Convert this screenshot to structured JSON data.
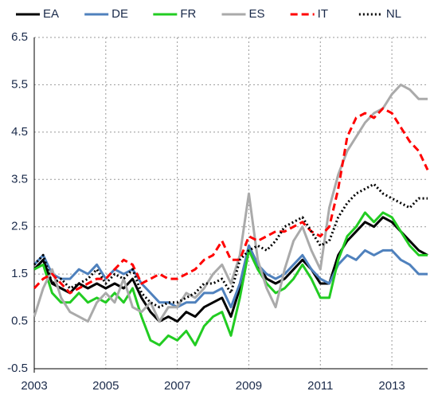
{
  "chart_data": {
    "type": "line",
    "x": [
      2003,
      2003.25,
      2003.5,
      2003.75,
      2004,
      2004.25,
      2004.5,
      2004.75,
      2005,
      2005.25,
      2005.5,
      2005.75,
      2006,
      2006.25,
      2006.5,
      2006.75,
      2007,
      2007.25,
      2007.5,
      2007.75,
      2008,
      2008.25,
      2008.5,
      2008.75,
      2009,
      2009.25,
      2009.5,
      2009.75,
      2010,
      2010.25,
      2010.5,
      2010.75,
      2011,
      2011.25,
      2011.5,
      2011.75,
      2012,
      2012.25,
      2012.5,
      2012.75,
      2013,
      2013.25,
      2013.5,
      2013.75,
      2014
    ],
    "series": [
      {
        "name": "EA",
        "color": "#000000",
        "linestyle": "solid",
        "values": [
          1.6,
          1.8,
          1.3,
          1.2,
          1.1,
          1.3,
          1.2,
          1.3,
          1.2,
          1.3,
          1.2,
          1.4,
          1.0,
          0.7,
          0.5,
          0.6,
          0.5,
          0.7,
          0.6,
          0.8,
          0.9,
          1.0,
          0.6,
          1.2,
          2.1,
          1.7,
          1.4,
          1.3,
          1.4,
          1.6,
          1.8,
          1.6,
          1.3,
          1.3,
          1.9,
          2.2,
          2.4,
          2.6,
          2.5,
          2.7,
          2.6,
          2.4,
          2.2,
          2.0,
          1.9
        ]
      },
      {
        "name": "DE",
        "color": "#4f81bd",
        "linestyle": "solid",
        "values": [
          1.7,
          1.9,
          1.5,
          1.4,
          1.4,
          1.6,
          1.5,
          1.7,
          1.4,
          1.6,
          1.5,
          1.6,
          1.3,
          1.1,
          0.9,
          0.9,
          0.8,
          0.9,
          0.9,
          1.1,
          1.1,
          1.2,
          0.8,
          1.3,
          2.1,
          1.7,
          1.5,
          1.4,
          1.5,
          1.7,
          1.9,
          1.6,
          1.4,
          1.3,
          1.7,
          1.9,
          1.8,
          2.0,
          1.9,
          2.0,
          2.0,
          1.8,
          1.7,
          1.5,
          1.5
        ]
      },
      {
        "name": "FR",
        "color": "#22cc22",
        "linestyle": "solid",
        "values": [
          1.6,
          1.7,
          1.1,
          0.9,
          0.9,
          1.1,
          0.9,
          1.0,
          0.9,
          1.1,
          0.9,
          1.2,
          0.6,
          0.1,
          0.0,
          0.2,
          0.1,
          0.3,
          0.0,
          0.4,
          0.6,
          0.7,
          0.2,
          1.0,
          2.0,
          1.6,
          1.3,
          1.1,
          1.2,
          1.4,
          1.7,
          1.4,
          1.0,
          1.0,
          1.8,
          2.3,
          2.5,
          2.8,
          2.6,
          2.8,
          2.7,
          2.4,
          2.1,
          1.9,
          1.9
        ]
      },
      {
        "name": "ES",
        "color": "#aaaaaa",
        "linestyle": "solid",
        "values": [
          0.6,
          1.2,
          1.6,
          1.0,
          0.7,
          0.6,
          0.5,
          0.9,
          1.1,
          0.9,
          1.4,
          0.8,
          0.7,
          0.9,
          0.5,
          0.8,
          0.8,
          1.1,
          1.0,
          1.2,
          1.5,
          1.7,
          1.3,
          1.9,
          3.2,
          1.8,
          1.2,
          0.8,
          1.6,
          2.2,
          2.5,
          2.0,
          1.6,
          2.9,
          3.6,
          4.1,
          4.4,
          4.7,
          4.9,
          5.0,
          5.3,
          5.5,
          5.4,
          5.2,
          5.2
        ]
      },
      {
        "name": "IT",
        "color": "#ff0000",
        "linestyle": "dashed",
        "values": [
          1.2,
          1.4,
          1.5,
          1.3,
          1.1,
          1.2,
          1.3,
          1.4,
          1.4,
          1.6,
          1.8,
          1.7,
          1.3,
          1.4,
          1.5,
          1.4,
          1.4,
          1.5,
          1.6,
          1.8,
          1.9,
          2.2,
          1.8,
          1.8,
          2.3,
          2.2,
          2.3,
          2.4,
          2.4,
          2.5,
          2.6,
          2.4,
          2.3,
          2.5,
          3.3,
          4.4,
          4.8,
          4.9,
          4.8,
          5.0,
          4.9,
          4.6,
          4.3,
          4.1,
          3.7
        ]
      },
      {
        "name": "NL",
        "color": "#000000",
        "linestyle": "dotted",
        "values": [
          1.7,
          1.9,
          1.3,
          1.4,
          1.2,
          1.3,
          1.4,
          1.6,
          1.3,
          1.5,
          1.4,
          1.6,
          1.1,
          0.9,
          0.8,
          0.9,
          0.9,
          1.0,
          1.1,
          1.3,
          1.3,
          1.4,
          1.1,
          1.8,
          2.0,
          2.1,
          2.0,
          2.2,
          2.5,
          2.6,
          2.7,
          2.4,
          2.1,
          2.2,
          2.7,
          3.0,
          3.2,
          3.3,
          3.4,
          3.2,
          3.1,
          3.0,
          2.9,
          3.1,
          3.1
        ]
      }
    ],
    "xlim": [
      2003,
      2014
    ],
    "xticks": [
      2003,
      2005,
      2007,
      2009,
      2011,
      2013
    ],
    "ylim": [
      -0.5,
      6.5
    ],
    "yticks": [
      -0.5,
      0.5,
      1.5,
      2.5,
      3.5,
      4.5,
      5.5,
      6.5
    ],
    "grid": true,
    "legend": "top"
  }
}
